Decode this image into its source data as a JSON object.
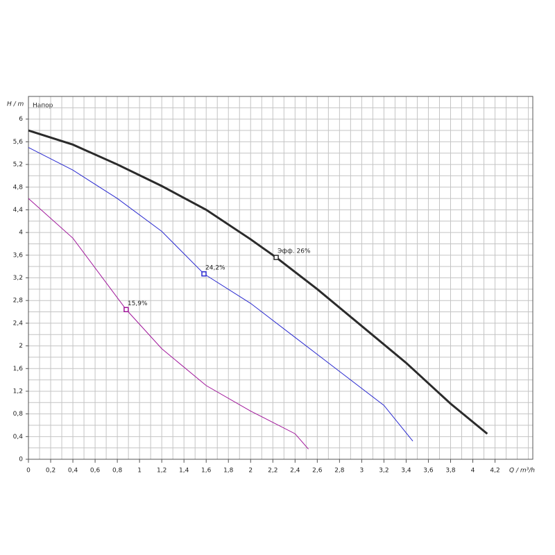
{
  "chart_data": {
    "type": "line",
    "y_label": "H / m",
    "x_label": "Q / m³/h",
    "title": "Напор",
    "xlim": [
      0,
      4.54
    ],
    "ylim": [
      0,
      6.4
    ],
    "x_minor_step": 0.1,
    "y_minor_step": 0.2,
    "grid": true,
    "xticks": [
      0,
      {
        "value": 0.2,
        "label": "0,2"
      },
      {
        "value": 0.4,
        "label": "0,4"
      },
      {
        "value": 0.6,
        "label": "0,6"
      },
      {
        "value": 0.8,
        "label": "0,8"
      },
      1,
      {
        "value": 1.2,
        "label": "1,2"
      },
      {
        "value": 1.4,
        "label": "1,4"
      },
      {
        "value": 1.6,
        "label": "1,6"
      },
      {
        "value": 1.8,
        "label": "1,8"
      },
      2,
      {
        "value": 2.2,
        "label": "2,2"
      },
      {
        "value": 2.4,
        "label": "2,4"
      },
      {
        "value": 2.6,
        "label": "2,6"
      },
      {
        "value": 2.8,
        "label": "2,8"
      },
      3,
      {
        "value": 3.2,
        "label": "3,2"
      },
      {
        "value": 3.4,
        "label": "3,4"
      },
      {
        "value": 3.6,
        "label": "3,6"
      },
      {
        "value": 3.8,
        "label": "3,8"
      },
      4,
      {
        "value": 4.2,
        "label": "4,2"
      }
    ],
    "yticks": [
      0,
      {
        "value": 0.4,
        "label": "0,4"
      },
      {
        "value": 0.8,
        "label": "0,8"
      },
      {
        "value": 1.2,
        "label": "1,2"
      },
      {
        "value": 1.6,
        "label": "1,6"
      },
      2,
      {
        "value": 2.4,
        "label": "2,4"
      },
      {
        "value": 2.8,
        "label": "2,8"
      },
      {
        "value": 3.2,
        "label": "3,2"
      },
      {
        "value": 3.6,
        "label": "3,6"
      },
      4,
      {
        "value": 4.4,
        "label": "4,4"
      },
      {
        "value": 4.8,
        "label": "4,8"
      },
      {
        "value": 5.2,
        "label": "5,2"
      },
      {
        "value": 5.6,
        "label": "5,6"
      },
      6
    ],
    "series": [
      {
        "color": "#2b2b2b",
        "width": 3,
        "x": [
          0,
          0.4,
          0.8,
          1.2,
          1.6,
          2.0,
          2.23,
          2.6,
          3.0,
          3.4,
          3.8,
          4.13
        ],
        "values": [
          5.8,
          5.55,
          5.2,
          4.82,
          4.4,
          3.88,
          3.56,
          3.0,
          2.35,
          1.7,
          0.98,
          0.45
        ]
      },
      {
        "color": "#2a2ad0",
        "width": 1,
        "x": [
          0,
          0.4,
          0.8,
          1.2,
          1.58,
          2.0,
          2.4,
          2.8,
          3.2,
          3.46
        ],
        "values": [
          5.5,
          5.1,
          4.6,
          4.02,
          3.27,
          2.75,
          2.15,
          1.55,
          0.95,
          0.32
        ]
      },
      {
        "color": "#a0169a",
        "width": 1,
        "x": [
          0,
          0.4,
          0.88,
          1.2,
          1.6,
          2.0,
          2.4,
          2.52
        ],
        "values": [
          4.6,
          3.9,
          2.64,
          1.95,
          1.3,
          0.85,
          0.45,
          0.18
        ]
      }
    ],
    "annotations": [
      {
        "x": 2.23,
        "y": 3.56,
        "label": "Эфф.  26%",
        "color": "#2b2b2b"
      },
      {
        "x": 1.58,
        "y": 3.27,
        "label": "24,2%",
        "color": "#2a2ad0"
      },
      {
        "x": 0.88,
        "y": 2.64,
        "label": "15,9%",
        "color": "#a0169a"
      }
    ]
  }
}
